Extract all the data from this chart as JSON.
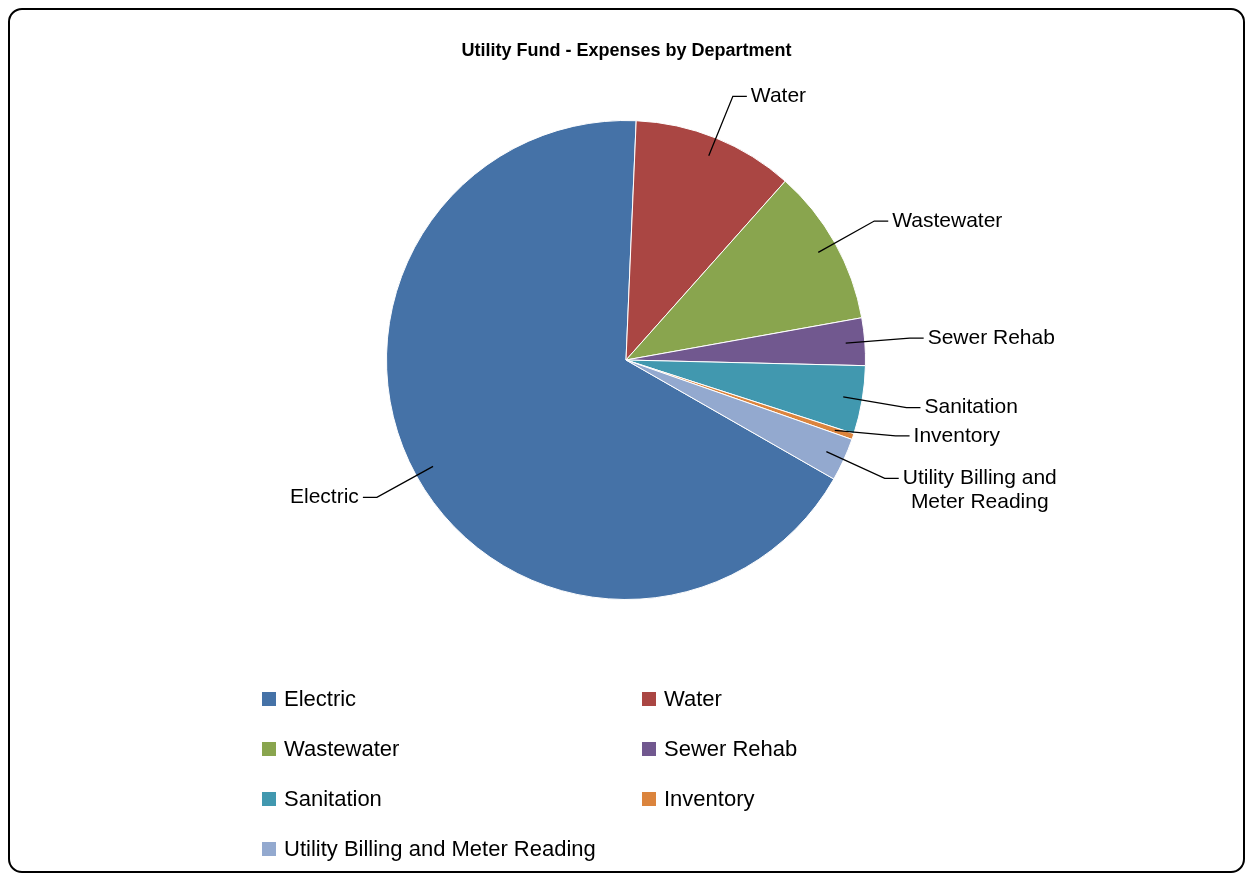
{
  "chart_data": {
    "type": "pie",
    "title": "Utility Fund - Expenses by Department",
    "categories": [
      "Electric",
      "Water",
      "Wastewater",
      "Sewer Rehab",
      "Sanitation",
      "Inventory",
      "Utility Billing and Meter Reading"
    ],
    "values": [
      67.4,
      10.9,
      10.6,
      3.2,
      4.6,
      0.4,
      2.9
    ],
    "colors": [
      "#4572a7",
      "#aa4643",
      "#89a54e",
      "#71588f",
      "#4198af",
      "#db843d",
      "#93a9cf"
    ],
    "legend": "bottom"
  }
}
